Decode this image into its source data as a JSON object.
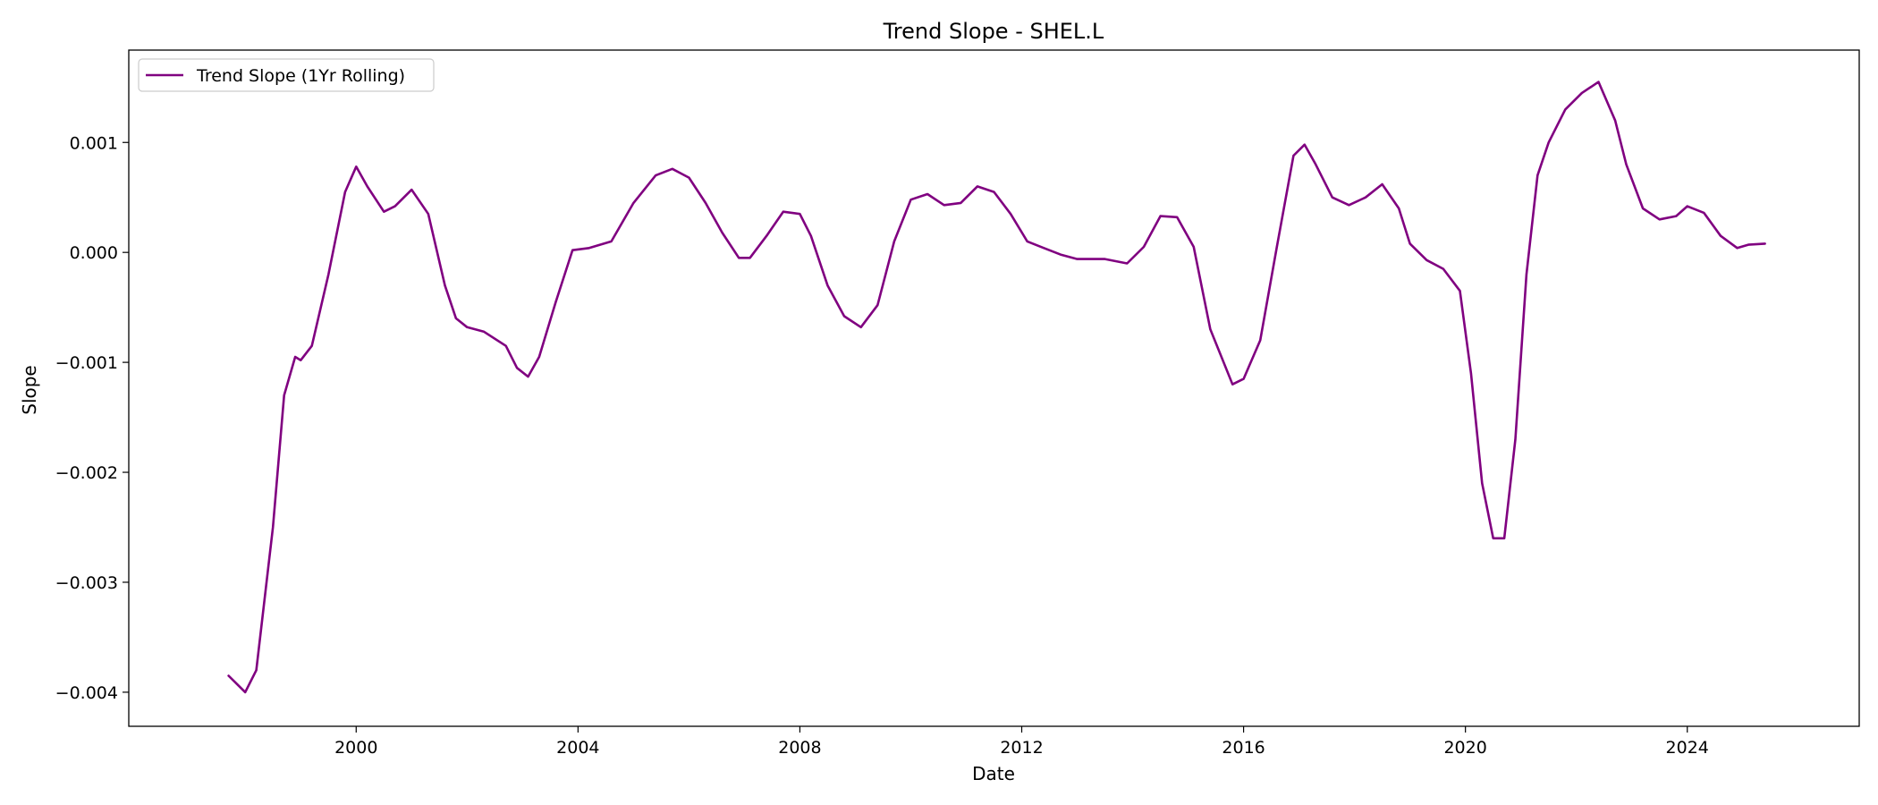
{
  "chart_data": {
    "type": "line",
    "title": "Trend Slope - SHEL.L",
    "xlabel": "Date",
    "ylabel": "Slope",
    "xlim": [
      1995.9,
      2027.1
    ],
    "ylim": [
      -0.00431,
      0.00184
    ],
    "x_ticks": [
      2000,
      2004,
      2008,
      2012,
      2016,
      2020,
      2024
    ],
    "x_tick_labels": [
      "2000",
      "2004",
      "2008",
      "2012",
      "2016",
      "2020",
      "2024"
    ],
    "y_ticks": [
      -0.004,
      -0.003,
      -0.002,
      -0.001,
      0.0,
      0.001
    ],
    "y_tick_labels": [
      "−0.004",
      "−0.003",
      "−0.002",
      "−0.001",
      "0.000",
      "0.001"
    ],
    "grid": false,
    "legend_position": "upper-left",
    "series": [
      {
        "name": "Trend Slope (1Yr Rolling)",
        "color": "#800080",
        "x": [
          1997.7,
          1998.0,
          1998.2,
          1998.5,
          1998.7,
          1998.9,
          1999.0,
          1999.2,
          1999.5,
          1999.8,
          2000.0,
          2000.2,
          2000.5,
          2000.7,
          2001.0,
          2001.3,
          2001.6,
          2001.8,
          2002.0,
          2002.3,
          2002.7,
          2002.9,
          2003.1,
          2003.3,
          2003.6,
          2003.9,
          2004.2,
          2004.6,
          2005.0,
          2005.4,
          2005.7,
          2006.0,
          2006.3,
          2006.6,
          2006.9,
          2007.1,
          2007.4,
          2007.7,
          2008.0,
          2008.2,
          2008.5,
          2008.8,
          2009.1,
          2009.4,
          2009.7,
          2010.0,
          2010.3,
          2010.6,
          2010.9,
          2011.2,
          2011.5,
          2011.8,
          2012.1,
          2012.4,
          2012.7,
          2013.0,
          2013.5,
          2013.9,
          2014.2,
          2014.5,
          2014.8,
          2015.1,
          2015.4,
          2015.8,
          2016.0,
          2016.3,
          2016.6,
          2016.9,
          2017.1,
          2017.3,
          2017.6,
          2017.9,
          2018.2,
          2018.5,
          2018.8,
          2019.0,
          2019.3,
          2019.6,
          2019.9,
          2020.1,
          2020.3,
          2020.5,
          2020.7,
          2020.9,
          2021.1,
          2021.3,
          2021.5,
          2021.8,
          2022.1,
          2022.4,
          2022.7,
          2022.9,
          2023.2,
          2023.5,
          2023.8,
          2024.0,
          2024.3,
          2024.6,
          2024.9,
          2025.1,
          2025.4
        ],
        "y": [
          -0.00385,
          -0.004,
          -0.0038,
          -0.0025,
          -0.0013,
          -0.00095,
          -0.00098,
          -0.00085,
          -0.0002,
          0.00055,
          0.00078,
          0.0006,
          0.00037,
          0.00042,
          0.00057,
          0.00035,
          -0.0003,
          -0.0006,
          -0.00068,
          -0.00072,
          -0.00085,
          -0.00105,
          -0.00113,
          -0.00095,
          -0.00045,
          2e-05,
          4e-05,
          0.0001,
          0.00045,
          0.0007,
          0.00076,
          0.00068,
          0.00045,
          0.00018,
          -5e-05,
          -5e-05,
          0.00015,
          0.00037,
          0.00035,
          0.00015,
          -0.0003,
          -0.00058,
          -0.00068,
          -0.00048,
          0.0001,
          0.00048,
          0.00053,
          0.00043,
          0.00045,
          0.0006,
          0.00055,
          0.00035,
          0.0001,
          4e-05,
          -2e-05,
          -6e-05,
          -6e-05,
          -0.0001,
          5e-05,
          0.00033,
          0.00032,
          5e-05,
          -0.0007,
          -0.0012,
          -0.00115,
          -0.0008,
          5e-05,
          0.00088,
          0.00098,
          0.0008,
          0.0005,
          0.00043,
          0.0005,
          0.00062,
          0.0004,
          8e-05,
          -7e-05,
          -0.00015,
          -0.00035,
          -0.0011,
          -0.0021,
          -0.0026,
          -0.0026,
          -0.0017,
          -0.0002,
          0.0007,
          0.001,
          0.0013,
          0.00145,
          0.00155,
          0.0012,
          0.0008,
          0.0004,
          0.0003,
          0.00033,
          0.00042,
          0.00036,
          0.00015,
          4e-05,
          7e-05,
          8e-05
        ]
      }
    ]
  }
}
